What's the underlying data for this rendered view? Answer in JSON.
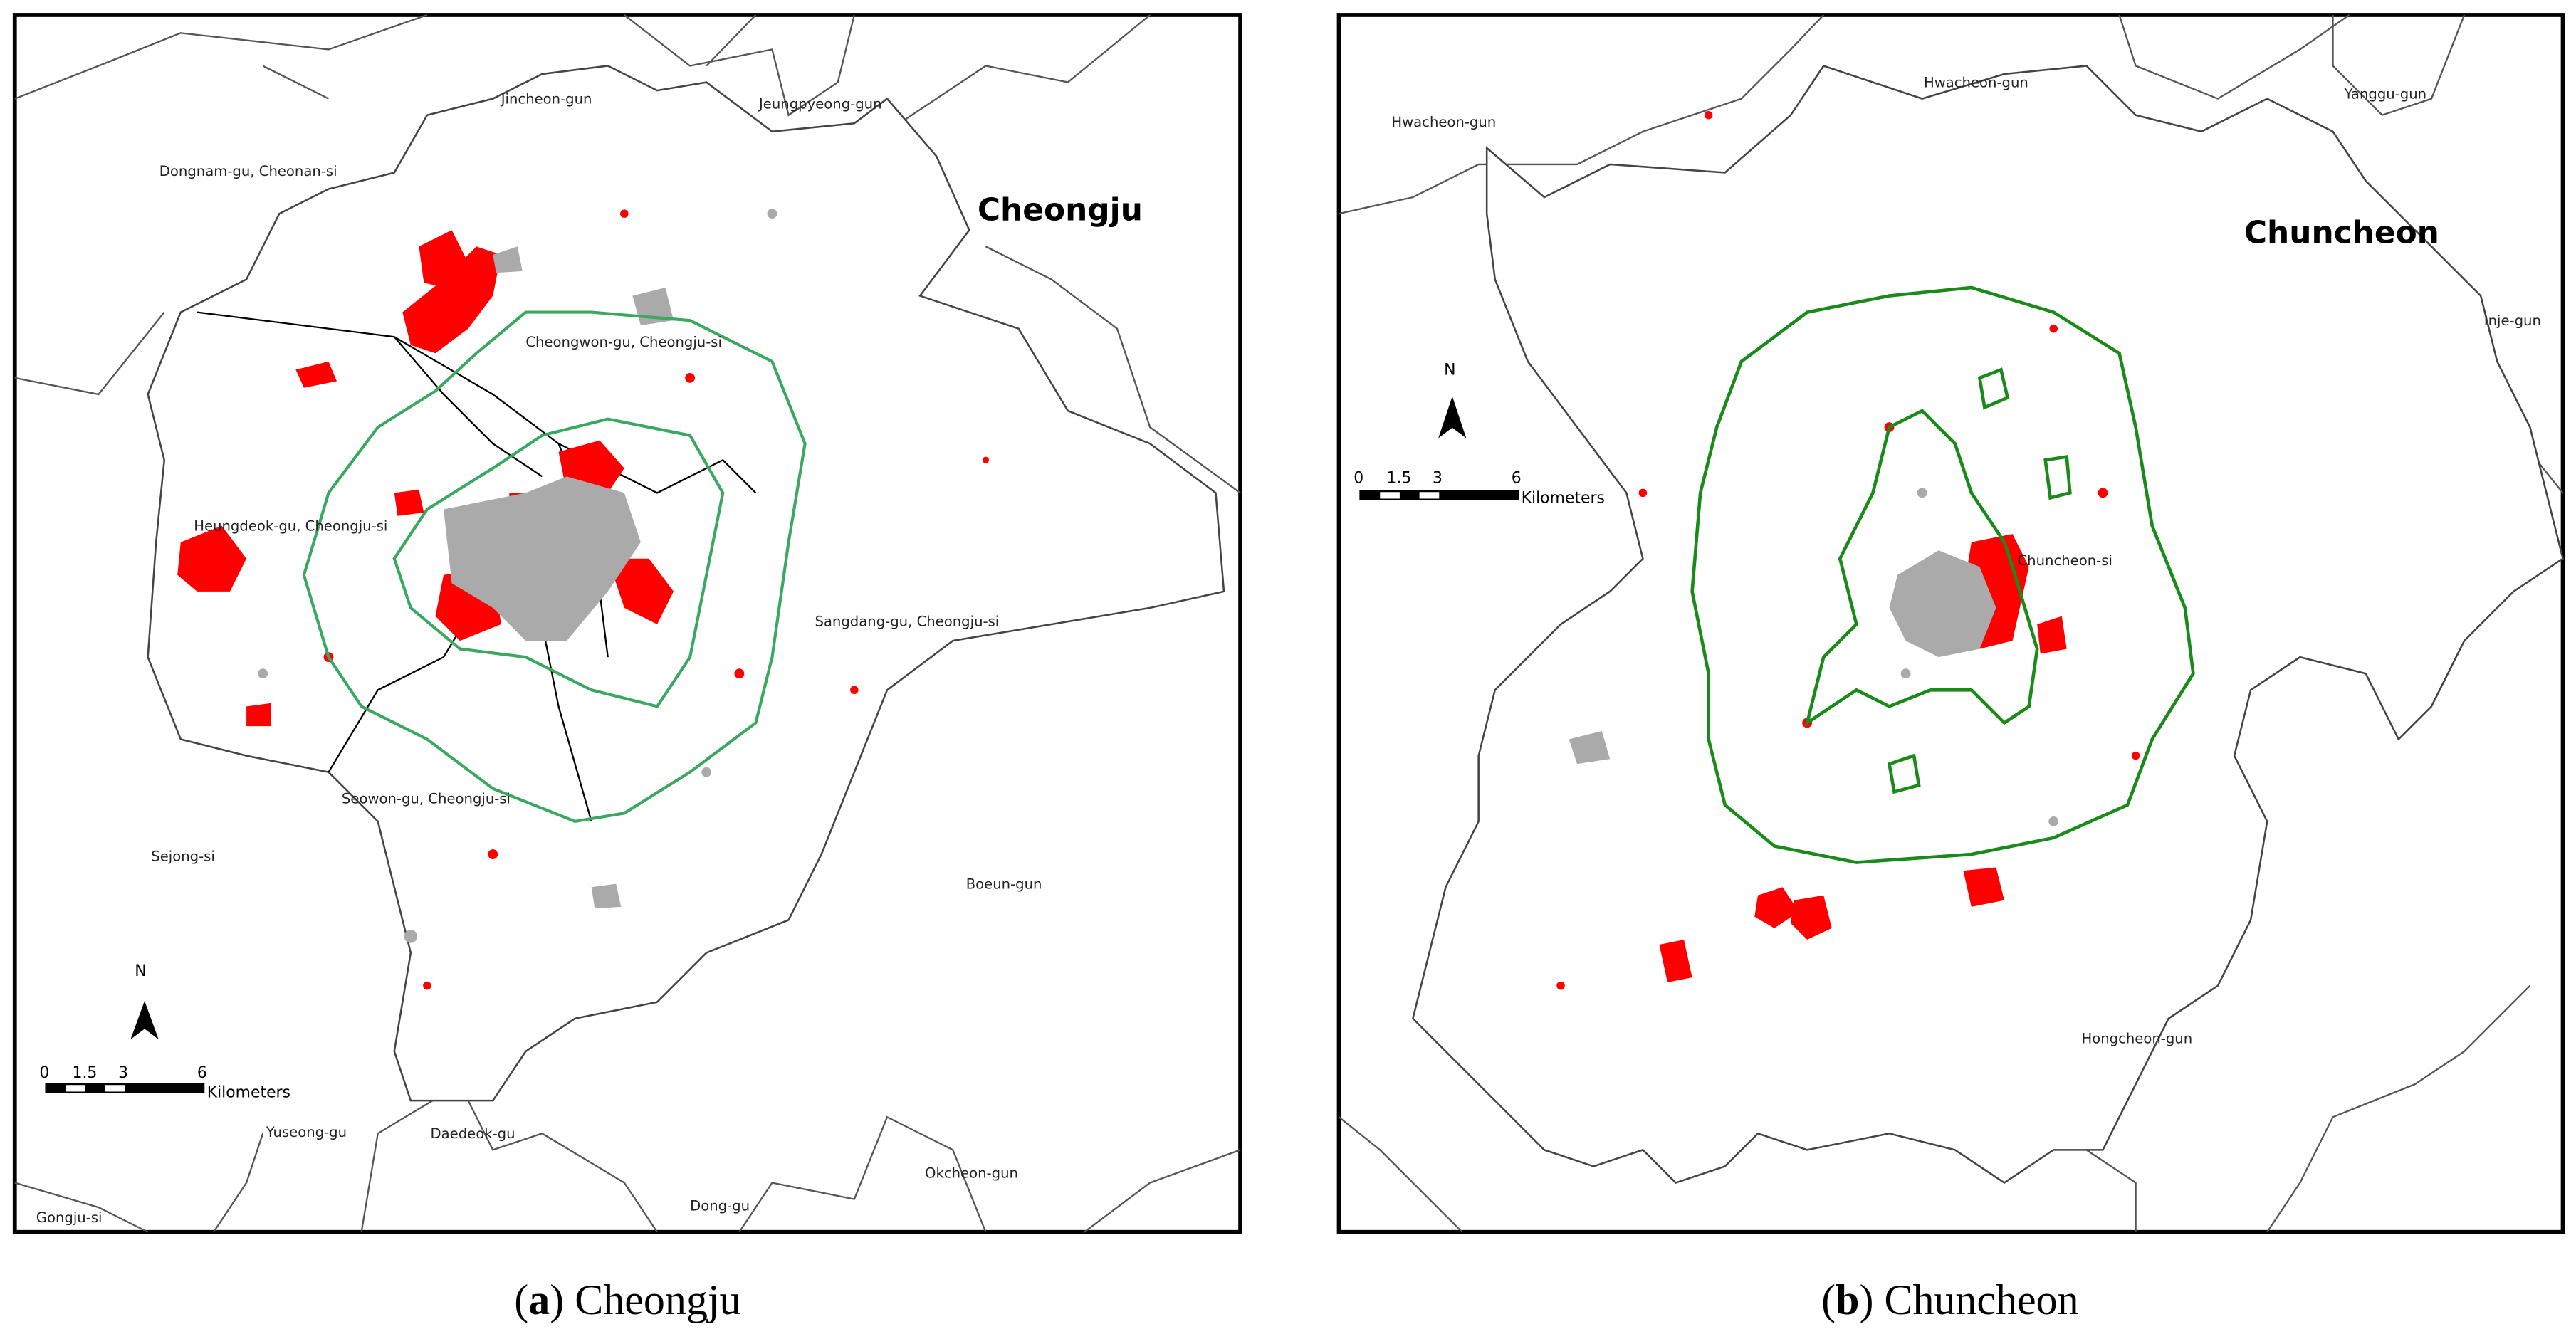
{
  "panels": [
    {
      "title": "Cheongju",
      "labels": [
        "Jincheon-gun",
        "Jeungpyeong-gun",
        "Dongnam-gu, Cheonan-si",
        "Cheongwon-gu, Cheongju-si",
        "Heungdeok-gu, Cheongju-si",
        "Sangdang-gu, Cheongju-si",
        "Seowon-gu, Cheongju-si",
        "Sejong-si",
        "Boeun-gun",
        "Yuseong-gu",
        "Daedeok-gu",
        "Dong-gu",
        "Okcheon-gun",
        "Gongju-si"
      ],
      "north": "N",
      "scale_ticks": [
        "0",
        "1.5",
        "3",
        "6"
      ],
      "scale_unit": "Kilometers",
      "caption": {
        "letter": "a",
        "name": "Cheongju"
      }
    },
    {
      "title": "Chuncheon",
      "labels": [
        "Hwacheon-gun",
        "Hwacheon-gun",
        "Yanggu-gun",
        "Inje-gun",
        "Chuncheon-si",
        "Hongcheon-gun"
      ],
      "north": "N",
      "scale_ticks": [
        "0",
        "1.5",
        "3",
        "6"
      ],
      "scale_unit": "Kilometers",
      "caption": {
        "letter": "b",
        "name": "Chuncheon"
      }
    }
  ]
}
